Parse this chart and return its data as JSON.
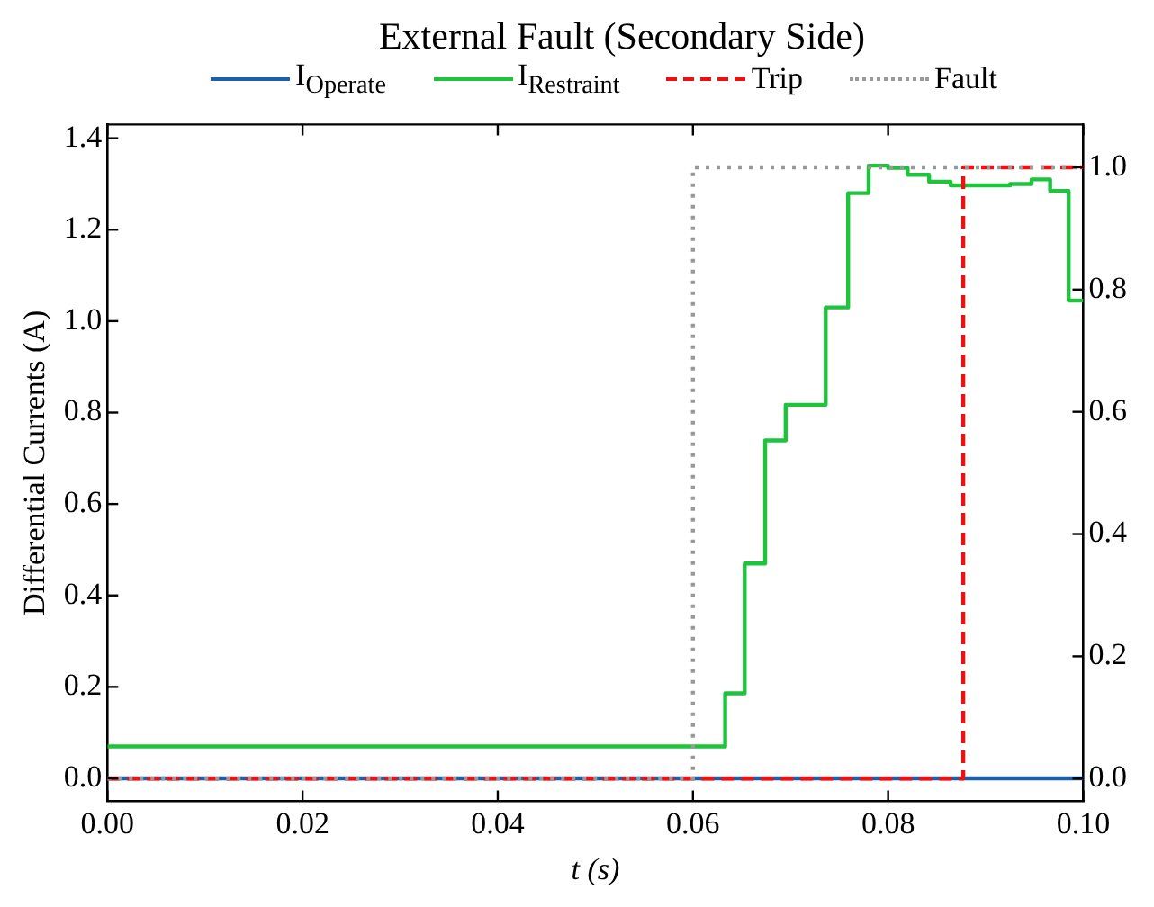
{
  "chart_data": {
    "type": "step",
    "title": "External Fault (Secondary Side)",
    "xlabel": "t (s)",
    "ylabel": "Differential Currents (A)",
    "legend": "top",
    "grid": false,
    "xlim": [
      0,
      0.1
    ],
    "xticks": [
      {
        "value": 0,
        "label": "0.00"
      },
      {
        "value": 0.02,
        "label": "0.02"
      },
      {
        "value": 0.04,
        "label": "0.04"
      },
      {
        "value": 0.06,
        "label": "0.06"
      },
      {
        "value": 0.08,
        "label": "0.08"
      },
      {
        "value": 0.1,
        "label": "0.10"
      }
    ],
    "ylim": [
      -0.05,
      1.43
    ],
    "yticks": [
      {
        "value": 0,
        "label": "0.0"
      },
      {
        "value": 0.2,
        "label": "0.2"
      },
      {
        "value": 0.4,
        "label": "0.4"
      },
      {
        "value": 0.6,
        "label": "0.6"
      },
      {
        "value": 0.8,
        "label": "0.8"
      },
      {
        "value": 1,
        "label": "1.0"
      },
      {
        "value": 1.2,
        "label": "1.2"
      },
      {
        "value": 1.4,
        "label": "1.4"
      }
    ],
    "y2lim": [
      -0.037,
      1.07
    ],
    "y2ticks": [
      {
        "value": 0,
        "label": "0.0"
      },
      {
        "value": 0.2,
        "label": "0.2"
      },
      {
        "value": 0.4,
        "label": "0.4"
      },
      {
        "value": 0.6,
        "label": "0.6"
      },
      {
        "value": 0.8,
        "label": "0.8"
      },
      {
        "value": 1,
        "label": "1.0"
      }
    ],
    "series": [
      {
        "name": "I$_{Operate}$",
        "color": "#1f5fa8",
        "line_style": "solid",
        "x": [
          0,
          0.1
        ],
        "values": [
          0,
          0
        ]
      },
      {
        "name": "I$_{Restraint}$",
        "color": "#1ec43c",
        "line_style": "solid",
        "x": [
          0,
          0.0633,
          0.0653,
          0.0674,
          0.0695,
          0.0736,
          0.0759,
          0.078,
          0.08,
          0.082,
          0.0842,
          0.0864,
          0.0925,
          0.0947,
          0.0966,
          0.0985,
          0.1
        ],
        "values": [
          0.07,
          0.186,
          0.47,
          0.739,
          0.817,
          1.03,
          1.28,
          1.34,
          1.335,
          1.32,
          1.305,
          1.297,
          1.3,
          1.31,
          1.285,
          1.045,
          1.045
        ]
      },
      {
        "name": "Trip",
        "color": "#ee1111",
        "line_style": "dashed",
        "axis": "y2",
        "x": [
          0,
          0.0877,
          0.1
        ],
        "values": [
          0,
          1,
          1
        ]
      },
      {
        "name": "Fault",
        "color": "#999999",
        "line_style": "dotted",
        "axis": "y2",
        "x": [
          0,
          0.06,
          0.1
        ],
        "values": [
          0,
          1,
          1
        ]
      }
    ]
  }
}
